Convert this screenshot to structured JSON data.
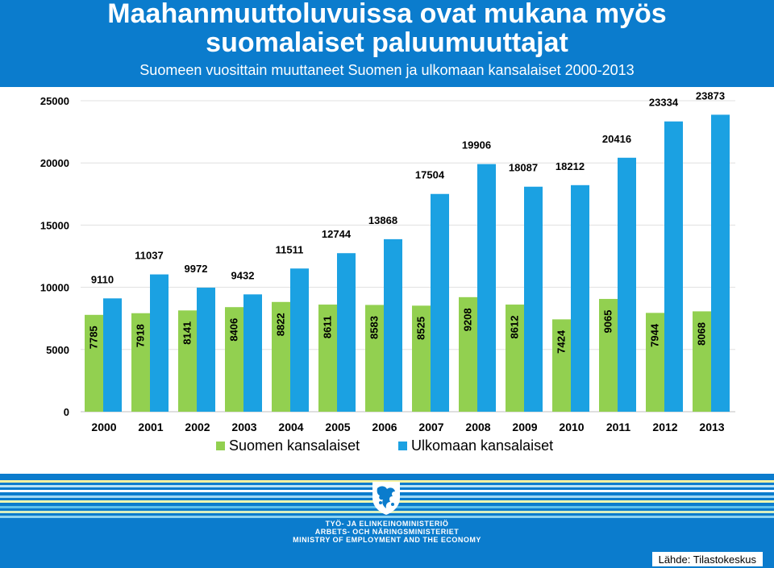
{
  "header": {
    "title_line1": "Maahanmuuttoluvuissa ovat mukana myös",
    "title_line2": "suomalaiset paluumuuttajat",
    "subtitle": "Suomeen vuosittain muuttaneet Suomen ja ulkomaan kansalaiset  2000-2013"
  },
  "chart_data": {
    "type": "bar",
    "categories": [
      "2000",
      "2001",
      "2002",
      "2003",
      "2004",
      "2005",
      "2006",
      "2007",
      "2008",
      "2009",
      "2010",
      "2011",
      "2012",
      "2013"
    ],
    "series": [
      {
        "name": "Suomen kansalaiset",
        "color": "#92d050",
        "values": [
          7785,
          7918,
          8141,
          8406,
          8822,
          8611,
          8583,
          8525,
          9208,
          8612,
          7424,
          9065,
          7944,
          8068
        ]
      },
      {
        "name": "Ulkomaan kansalaiset",
        "color": "#1ba1e2",
        "values": [
          9110,
          11037,
          9972,
          9432,
          11511,
          12744,
          13868,
          17504,
          19906,
          18087,
          18212,
          20416,
          23334,
          23873
        ]
      }
    ],
    "ylim": [
      0,
      25000
    ],
    "yticks": [
      0,
      5000,
      10000,
      15000,
      20000,
      25000
    ],
    "grid": true,
    "legend_position": "bottom"
  },
  "legend": {
    "items": [
      "Suomen kansalaiset",
      "Ulkomaan kansalaiset"
    ]
  },
  "footer": {
    "ministry_fi": "TYÖ- JA ELINKEINOMINISTERIÖ",
    "ministry_sv": "ARBETS- OCH NÄRINGSMINISTERIET",
    "ministry_en": "MINISTRY OF EMPLOYMENT AND THE ECONOMY",
    "source": "Lähde: Tilastokeskus",
    "stripe_colors": [
      "#fff3a0",
      "#b8e3f6",
      "#ffffff",
      "#9fd8f3",
      "#f2f8b0",
      "#5fc0ea",
      "#d8efc0",
      "#8cd2f0"
    ]
  }
}
